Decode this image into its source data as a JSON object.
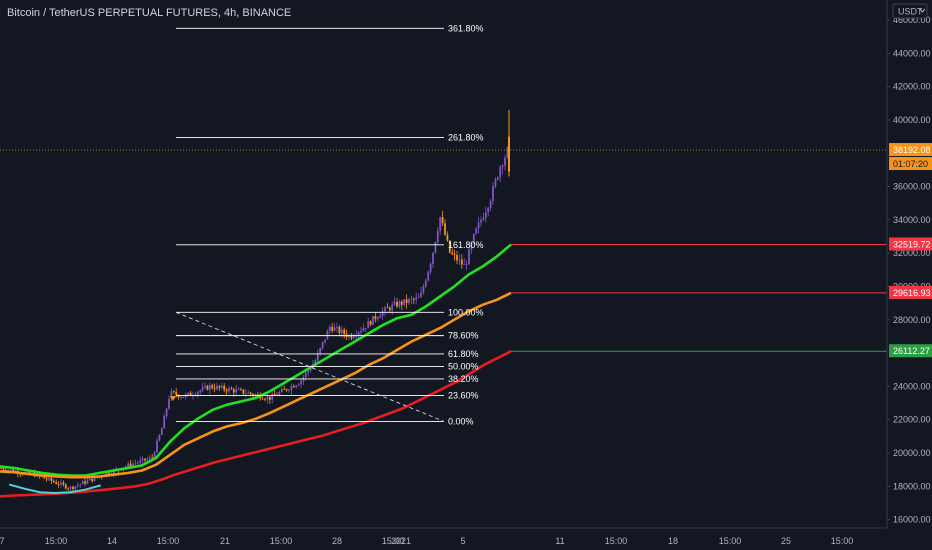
{
  "header": {
    "symbol_title": "Bitcoin / TetherUS PERPETUAL FUTURES, 4h, BINANCE"
  },
  "price_scale": {
    "currency_label": "USDT",
    "currency_icon": "chevron-down-icon",
    "ticks": [
      "46000.00",
      "44000.00",
      "42000.00",
      "40000.00",
      "36000.00",
      "34000.00",
      "32000.00",
      "30000.00",
      "28000.00",
      "24000.00",
      "22000.00",
      "20000.00",
      "18000.00",
      "16000.00"
    ]
  },
  "time_scale": {
    "ticks": [
      "7",
      "15:00",
      "14",
      "15:00",
      "21",
      "15:00",
      "28",
      "15:00",
      "2021",
      "5",
      "11",
      "15:00",
      "18",
      "15:00",
      "25",
      "15:00"
    ]
  },
  "chart_data": {
    "type": "candlestick",
    "y_range": [
      15500,
      47200
    ],
    "last_price": {
      "value": 38192.08,
      "label": "38192.08",
      "countdown": "01:07:20",
      "color": "#f7931a"
    },
    "moving_averages": [
      {
        "color": "#22e022",
        "end_label": "32519.72",
        "end_value": 32519.72,
        "tag_color": "#f23645",
        "values": [
          19200,
          19100,
          18950,
          18800,
          18700,
          18650,
          18650,
          18800,
          18950,
          19100,
          19250,
          19700,
          20700,
          21500,
          22100,
          22600,
          22900,
          23100,
          23300,
          23700,
          24200,
          24700,
          25200,
          25700,
          26200,
          26700,
          27200,
          27700,
          28100,
          28300,
          28800,
          29400,
          30000,
          30700,
          31200,
          31800,
          32519.72
        ]
      },
      {
        "color": "#f7931a",
        "end_label": "29616.93",
        "end_value": 29616.93,
        "tag_color": "#f23645",
        "values": [
          18900,
          18850,
          18750,
          18650,
          18600,
          18550,
          18550,
          18600,
          18700,
          18800,
          18950,
          19300,
          19900,
          20500,
          20900,
          21300,
          21600,
          21800,
          22050,
          22400,
          22800,
          23200,
          23600,
          24000,
          24400,
          24800,
          25300,
          25700,
          26200,
          26700,
          27100,
          27500,
          28000,
          28500,
          28900,
          29200,
          29616.93
        ]
      },
      {
        "color": "#e61e1e",
        "end_label": "26112.27",
        "end_value": 26112.27,
        "tag_color": "#2e9e44",
        "values": [
          17400,
          17450,
          17480,
          17520,
          17560,
          17610,
          17670,
          17740,
          17820,
          17900,
          17990,
          18150,
          18400,
          18700,
          18950,
          19200,
          19450,
          19650,
          19850,
          20050,
          20250,
          20450,
          20650,
          20850,
          21050,
          21300,
          21550,
          21800,
          22100,
          22400,
          22700,
          23100,
          23500,
          23900,
          24300,
          24800,
          25300,
          25700,
          26112.27
        ]
      }
    ],
    "trend_marker": {
      "color": "#4dd0e1",
      "values": [
        18100,
        17850,
        17650,
        17600,
        17650,
        17800,
        18050
      ]
    },
    "fib_levels": [
      {
        "label": "361.80%",
        "price": 45500
      },
      {
        "label": "261.80%",
        "price": 38950
      },
      {
        "label": "161.80%",
        "price": 32500
      },
      {
        "label": "100.00%",
        "price": 28450
      },
      {
        "label": "78.60%",
        "price": 27050
      },
      {
        "label": "61.80%",
        "price": 25950
      },
      {
        "label": "50.00%",
        "price": 25200
      },
      {
        "label": "38.20%",
        "price": 24450
      },
      {
        "label": "23.60%",
        "price": 23450
      },
      {
        "label": "0.00%",
        "price": 21900
      }
    ],
    "candle_colors": {
      "up": "#7e57c2",
      "down": "#f7931a"
    }
  }
}
